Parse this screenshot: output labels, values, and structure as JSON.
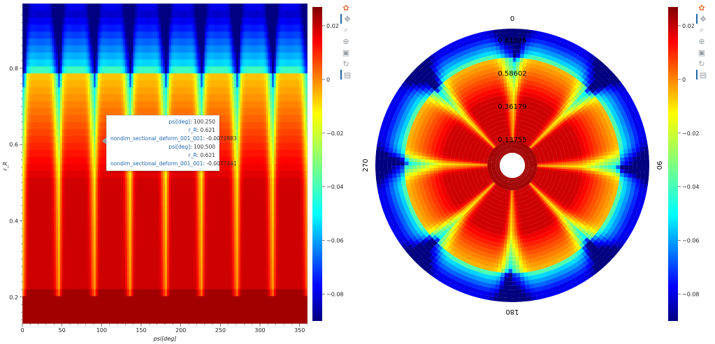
{
  "toolbars": [
    {
      "tools": [
        {
          "name": "bokeh-logo-icon",
          "glyph": "✿",
          "active": false
        },
        {
          "name": "pan-icon",
          "glyph": "✥",
          "active": true
        },
        {
          "name": "box-zoom-icon",
          "glyph": "⌕",
          "active": false
        },
        {
          "name": "wheel-zoom-icon",
          "glyph": "⊕",
          "active": false
        },
        {
          "name": "save-icon",
          "glyph": "▣",
          "active": false
        },
        {
          "name": "reset-icon",
          "glyph": "↻",
          "active": false
        },
        {
          "name": "hover-icon",
          "glyph": "▤",
          "active": true
        }
      ]
    },
    {
      "tools": [
        {
          "name": "bokeh-logo-icon",
          "glyph": "✿",
          "active": false
        },
        {
          "name": "pan-icon",
          "glyph": "✥",
          "active": true
        },
        {
          "name": "box-zoom-icon",
          "glyph": "⌕",
          "active": false
        },
        {
          "name": "wheel-zoom-icon",
          "glyph": "⊕",
          "active": false
        },
        {
          "name": "save-icon",
          "glyph": "▣",
          "active": false
        },
        {
          "name": "reset-icon",
          "glyph": "↻",
          "active": false
        },
        {
          "name": "hover-icon",
          "glyph": "▤",
          "active": true
        }
      ]
    }
  ],
  "tooltip": {
    "rows": [
      {
        "key": "psi[deg]",
        "value": "100.250"
      },
      {
        "key": "r_R",
        "value": "0.621"
      },
      {
        "key": "nondim_sectional_deform_001_001",
        "value": "-0.0072883"
      },
      {
        "key": "psi[deg]",
        "value": "100.500"
      },
      {
        "key": "r_R",
        "value": "0.621"
      },
      {
        "key": "nondim_sectional_deform_001_001",
        "value": "-0.0077441"
      }
    ]
  },
  "chart_data": [
    {
      "type": "heatmap",
      "xlabel": "psi[deg]",
      "ylabel": "r_R",
      "xlim": [
        0,
        360
      ],
      "ylim": [
        0.13,
        0.97
      ],
      "xticks": [
        0,
        50,
        100,
        150,
        200,
        250,
        300,
        350
      ],
      "yticks": [
        0.2,
        0.4,
        0.6,
        0.8
      ],
      "color_range": [
        -0.09,
        0.027
      ],
      "colormap": "jet",
      "blade_azimuths_deg": [
        0,
        45,
        90,
        135,
        180,
        225,
        270,
        315,
        360
      ]
    },
    {
      "type": "heatmap",
      "polar": true,
      "angle_labels": [
        {
          "deg": 0,
          "text": "0"
        },
        {
          "deg": 90,
          "text": "90"
        },
        {
          "deg": 180,
          "text": "180"
        },
        {
          "deg": 270,
          "text": "270"
        }
      ],
      "ring_labels": [
        "0.13755",
        "0.36179",
        "0.58602",
        "0.81026"
      ],
      "ring_values": [
        0.13755,
        0.36179,
        0.58602,
        0.81026
      ],
      "r_range": [
        0.13,
        0.97
      ],
      "color_range": [
        -0.09,
        0.027
      ],
      "colormap": "jet",
      "blade_azimuths_deg": [
        0,
        45,
        90,
        135,
        180,
        225,
        270,
        315
      ]
    }
  ],
  "colorbar": {
    "ticks": [
      0.02,
      0,
      -0.02,
      -0.04,
      -0.06,
      -0.08
    ],
    "labels": [
      "0.02",
      "0",
      "−0.02",
      "−0.04",
      "−0.06",
      "−0.08"
    ],
    "range": [
      -0.09,
      0.027
    ]
  }
}
